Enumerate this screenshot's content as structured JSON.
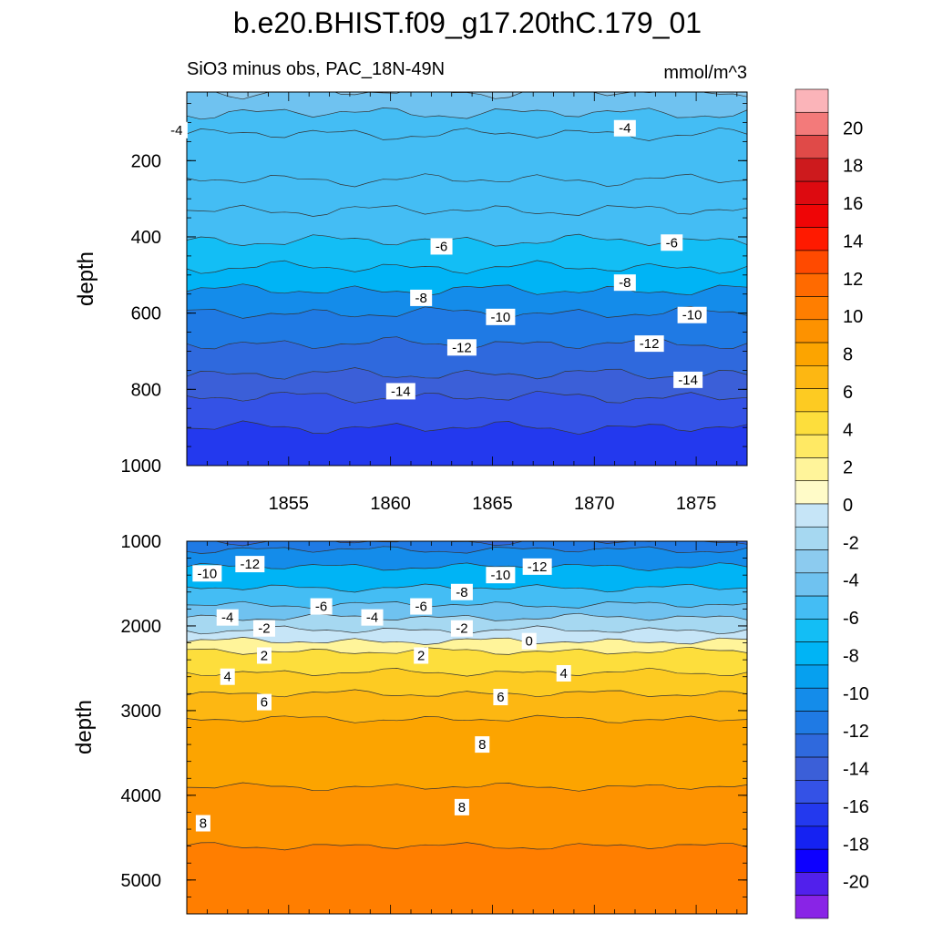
{
  "title": "b.e20.BHIST.f09_g17.20thC.179_01",
  "subtitle_left": "SiO3 minus obs, PAC_18N-49N",
  "subtitle_right": "mmol/m^3",
  "chart_data": [
    {
      "type": "contour",
      "panel": "upper",
      "xlabel": "",
      "ylabel": "depth",
      "xlim": [
        1850,
        1877.5
      ],
      "ylim": [
        1000,
        20
      ],
      "x_ticks": [
        "1855",
        "1860",
        "1865",
        "1870",
        "1875"
      ],
      "y_ticks": [
        "200",
        "400",
        "600",
        "800",
        "1000"
      ],
      "levels": [
        {
          "depth": 20,
          "value": -3
        },
        {
          "depth": 75,
          "value": -4
        },
        {
          "depth": 130,
          "value": -5
        },
        {
          "depth": 250,
          "value": -5.5
        },
        {
          "depth": 330,
          "value": -5.5
        },
        {
          "depth": 410,
          "value": -6
        },
        {
          "depth": 480,
          "value": -7
        },
        {
          "depth": 540,
          "value": -8
        },
        {
          "depth": 600,
          "value": -10
        },
        {
          "depth": 680,
          "value": -12
        },
        {
          "depth": 760,
          "value": -13
        },
        {
          "depth": 820,
          "value": -14
        },
        {
          "depth": 900,
          "value": -15
        },
        {
          "depth": 1000,
          "value": -16
        }
      ],
      "contour_labels": [
        {
          "text": "-4",
          "x": 1849.5,
          "depth": 120
        },
        {
          "text": "-4",
          "x": 1871.5,
          "depth": 115
        },
        {
          "text": "-6",
          "x": 1862.5,
          "depth": 425
        },
        {
          "text": "-6",
          "x": 1873.8,
          "depth": 415
        },
        {
          "text": "-8",
          "x": 1861.5,
          "depth": 560
        },
        {
          "text": "-8",
          "x": 1871.5,
          "depth": 520
        },
        {
          "text": "-10",
          "x": 1865.4,
          "depth": 610
        },
        {
          "text": "-10",
          "x": 1874.8,
          "depth": 605
        },
        {
          "text": "-12",
          "x": 1863.5,
          "depth": 690
        },
        {
          "text": "-12",
          "x": 1872.7,
          "depth": 680
        },
        {
          "text": "-14",
          "x": 1860.5,
          "depth": 805
        },
        {
          "text": "-14",
          "x": 1874.6,
          "depth": 775
        }
      ]
    },
    {
      "type": "contour",
      "panel": "lower",
      "xlabel": "",
      "ylabel": "depth",
      "xlim": [
        1850,
        1877.5
      ],
      "ylim": [
        5400,
        1000
      ],
      "y_ticks": [
        "1000",
        "2000",
        "3000",
        "4000",
        "5000"
      ],
      "levels": [
        {
          "depth": 1000,
          "value": -13
        },
        {
          "depth": 1100,
          "value": -12
        },
        {
          "depth": 1300,
          "value": -10
        },
        {
          "depth": 1550,
          "value": -8
        },
        {
          "depth": 1750,
          "value": -6
        },
        {
          "depth": 1900,
          "value": -4
        },
        {
          "depth": 2050,
          "value": -2
        },
        {
          "depth": 2180,
          "value": 0
        },
        {
          "depth": 2300,
          "value": 2
        },
        {
          "depth": 2550,
          "value": 4
        },
        {
          "depth": 2800,
          "value": 6
        },
        {
          "depth": 3100,
          "value": 7
        },
        {
          "depth": 3900,
          "value": 8
        },
        {
          "depth": 4600,
          "value": 9
        },
        {
          "depth": 5400,
          "value": 10
        }
      ],
      "contour_labels": [
        {
          "text": "-12",
          "x": 1853.1,
          "depth": 1270
        },
        {
          "text": "-10",
          "x": 1851,
          "depth": 1380
        },
        {
          "text": "-12",
          "x": 1867.2,
          "depth": 1300
        },
        {
          "text": "-10",
          "x": 1865.4,
          "depth": 1400
        },
        {
          "text": "-8",
          "x": 1863.5,
          "depth": 1600
        },
        {
          "text": "-6",
          "x": 1856.6,
          "depth": 1770
        },
        {
          "text": "-6",
          "x": 1861.5,
          "depth": 1770
        },
        {
          "text": "-4",
          "x": 1852,
          "depth": 1900
        },
        {
          "text": "-4",
          "x": 1859.1,
          "depth": 1900
        },
        {
          "text": "-2",
          "x": 1853.8,
          "depth": 2030
        },
        {
          "text": "-2",
          "x": 1863.5,
          "depth": 2030
        },
        {
          "text": "0",
          "x": 1866.8,
          "depth": 2180
        },
        {
          "text": "2",
          "x": 1853.8,
          "depth": 2350
        },
        {
          "text": "2",
          "x": 1861.5,
          "depth": 2350
        },
        {
          "text": "4",
          "x": 1852,
          "depth": 2600
        },
        {
          "text": "4",
          "x": 1868.5,
          "depth": 2560
        },
        {
          "text": "6",
          "x": 1853.8,
          "depth": 2900
        },
        {
          "text": "6",
          "x": 1865.4,
          "depth": 2840
        },
        {
          "text": "8",
          "x": 1864.5,
          "depth": 3400
        },
        {
          "text": "8",
          "x": 1863.5,
          "depth": 4140
        },
        {
          "text": "8",
          "x": 1850.8,
          "depth": 4330
        }
      ]
    }
  ],
  "colorbar": {
    "tick_labels": [
      "20",
      "18",
      "16",
      "14",
      "12",
      "10",
      "8",
      "6",
      "4",
      "2",
      "0",
      "-2",
      "-4",
      "-6",
      "-8",
      "-10",
      "-12",
      "-14",
      "-16",
      "-18",
      "-20"
    ],
    "colors": [
      "#fbb4b9",
      "#f37a7a",
      "#e04a48",
      "#cd1a1d",
      "#dd0a10",
      "#ef0506",
      "#ff1a00",
      "#ff4a00",
      "#ff6a00",
      "#ff7e00",
      "#fd9200",
      "#fca400",
      "#fdb712",
      "#fdcb22",
      "#fdde3c",
      "#ffe964",
      "#fff49a",
      "#fffbc8",
      "#c6e5f7",
      "#a6d8f1",
      "#8ccbef",
      "#6fc2f0",
      "#44bdf4",
      "#13bef5",
      "#00b4f5",
      "#06a0ef",
      "#148cea",
      "#1f7ae4",
      "#2f69dd",
      "#3b5fd8",
      "#3452e6",
      "#2339ee",
      "#1522f2",
      "#0d00ff",
      "#5120ec",
      "#8924e6"
    ]
  }
}
